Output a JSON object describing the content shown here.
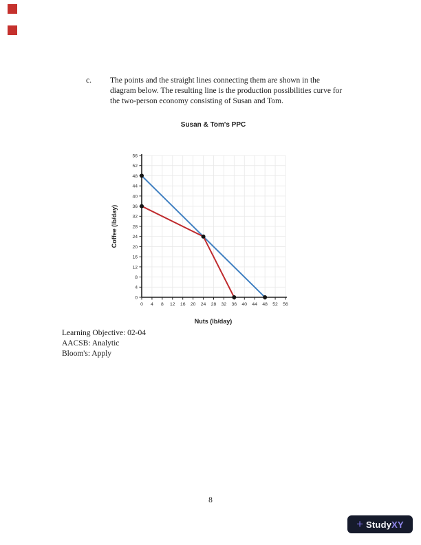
{
  "artifacts": {
    "red_mark_color": "#c5312d"
  },
  "paragraph": {
    "marker": "c.",
    "lines": [
      "The points and the straight lines connecting them are shown in the",
      "diagram below. The resulting line is the production possibilities curve for",
      "the two-person economy consisting of Susan and Tom."
    ]
  },
  "chart_data": {
    "type": "line",
    "title": "Susan & Tom's PPC",
    "xlabel": "Nuts (lb/day)",
    "ylabel": "Coffee (lb/day)",
    "xlim": [
      0,
      56
    ],
    "ylim": [
      0,
      56
    ],
    "xticks": [
      0,
      4,
      8,
      12,
      16,
      20,
      24,
      28,
      32,
      36,
      40,
      44,
      48,
      52,
      56
    ],
    "yticks": [
      0,
      4,
      8,
      12,
      16,
      20,
      24,
      28,
      32,
      36,
      40,
      44,
      48,
      52,
      56
    ],
    "grid": true,
    "grid_color": "#e8e8e8",
    "axis_color": "#222222",
    "legend": "none",
    "series": [
      {
        "name": "blue_line",
        "color": "#3f7fc1",
        "points": [
          [
            0,
            48
          ],
          [
            48,
            0
          ]
        ]
      },
      {
        "name": "red_line",
        "color": "#bf2b2e",
        "points": [
          [
            0,
            36
          ],
          [
            24,
            24
          ],
          [
            36,
            0
          ]
        ]
      }
    ],
    "markers": {
      "color": "#141414",
      "points": [
        [
          0,
          48
        ],
        [
          0,
          36
        ],
        [
          24,
          24
        ],
        [
          36,
          0
        ],
        [
          48,
          0
        ]
      ]
    }
  },
  "meta": {
    "lines": [
      "Learning Objective: 02-04",
      "AACSB: Analytic",
      "Bloom's: Apply"
    ]
  },
  "footer": {
    "page_number": "8"
  },
  "brand": {
    "plus_glyph": "+",
    "name_primary": "Study",
    "name_accent": "XY",
    "badge_bg": "#161b2c",
    "plus_color": "#7b6fe6",
    "primary_color": "#f5f6fa",
    "accent_color": "#9188ee"
  }
}
